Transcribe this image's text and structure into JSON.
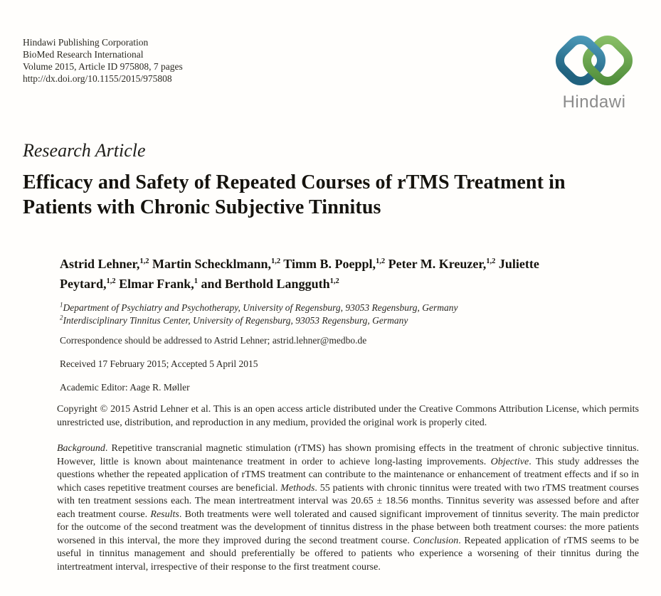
{
  "header": {
    "publisher": "Hindawi Publishing Corporation",
    "journal": "BioMed Research International",
    "volume_line": "Volume 2015, Article ID 975808, 7 pages",
    "doi_url": "http://dx.doi.org/10.1155/2015/975808"
  },
  "logo": {
    "wordmark": "Hindawi",
    "blue_dark": "#20627f",
    "blue_light": "#4e9bba",
    "green_dark": "#4c8a38",
    "green_light": "#8cc169",
    "wordmark_gray": "#8b8b8b"
  },
  "article": {
    "type_label": "Research Article",
    "title": "Efficacy and Safety of Repeated Courses of rTMS Treatment in Patients with Chronic Subjective Tinnitus"
  },
  "authors": [
    {
      "name": "Astrid Lehner,",
      "sup": "1,2"
    },
    {
      "name": "Martin Schecklmann,",
      "sup": "1,2"
    },
    {
      "name": "Timm B. Poeppl,",
      "sup": "1,2"
    },
    {
      "name": "Peter M. Kreuzer,",
      "sup": "1,2"
    },
    {
      "name": "Juliette Peytard,",
      "sup": "1,2"
    },
    {
      "name": "Elmar Frank,",
      "sup": "1"
    },
    {
      "name": "and Berthold Langguth",
      "sup": "1,2"
    }
  ],
  "affiliations": [
    {
      "sup": "1",
      "text": "Department of Psychiatry and Psychotherapy, University of Regensburg, 93053 Regensburg, Germany"
    },
    {
      "sup": "2",
      "text": "Interdisciplinary Tinnitus Center, University of Regensburg, 93053 Regensburg, Germany"
    }
  ],
  "correspondence": {
    "prefix": "Correspondence should be addressed to Astrid Lehner; ",
    "email": "astrid.lehner@medbo.de"
  },
  "dates_line": "Received 17 February 2015; Accepted 5 April 2015",
  "editor_line": "Academic Editor: Aage R. Møller",
  "copyright_text": "Copyright © 2015 Astrid Lehner et al. This is an open access article distributed under the Creative Commons Attribution License, which permits unrestricted use, distribution, and reproduction in any medium, provided the original work is properly cited.",
  "abstract_segments": [
    {
      "italic": true,
      "text": "Background"
    },
    {
      "italic": false,
      "text": ". Repetitive transcranial magnetic stimulation (rTMS) has shown promising effects in the treatment of chronic subjective tinnitus. However, little is known about maintenance treatment in order to achieve long-lasting improvements. "
    },
    {
      "italic": true,
      "text": "Objective"
    },
    {
      "italic": false,
      "text": ". This study addresses the questions whether the repeated application of rTMS treatment can contribute to the maintenance or enhancement of treatment effects and if so in which cases repetitive treatment courses are beneficial. "
    },
    {
      "italic": true,
      "text": "Methods"
    },
    {
      "italic": false,
      "text": ". 55 patients with chronic tinnitus were treated with two rTMS treatment courses with ten treatment sessions each. The mean intertreatment interval was 20.65 ± 18.56 months. Tinnitus severity was assessed before and after each treatment course. "
    },
    {
      "italic": true,
      "text": "Results"
    },
    {
      "italic": false,
      "text": ". Both treatments were well tolerated and caused significant improvement of tinnitus severity. The main predictor for the outcome of the second treatment was the development of tinnitus distress in the phase between both treatment courses: the more patients worsened in this interval, the more they improved during the second treatment course. "
    },
    {
      "italic": true,
      "text": "Conclusion"
    },
    {
      "italic": false,
      "text": ". Repeated application of rTMS seems to be useful in tinnitus management and should preferentially be offered to patients who experience a worsening of their tinnitus during the intertreatment interval, irrespective of their response to the first treatment course."
    }
  ]
}
